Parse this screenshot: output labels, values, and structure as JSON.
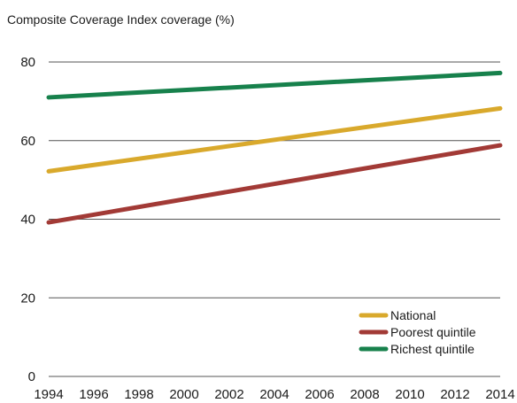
{
  "chart_data": {
    "type": "line",
    "ylabel": "Composite Coverage Index coverage (%)",
    "xlabel": "",
    "ylim": [
      0,
      80
    ],
    "yticks": [
      0,
      20,
      40,
      60,
      80
    ],
    "xlim": [
      1994,
      2014
    ],
    "xticks": [
      1994,
      1996,
      1998,
      2000,
      2002,
      2004,
      2006,
      2008,
      2010,
      2012,
      2014
    ],
    "grid": true,
    "legend_position": "bottom-right",
    "series": [
      {
        "name": "National",
        "color": "#d9a92c",
        "x": [
          1994,
          2014
        ],
        "values": [
          52.2,
          68.2
        ]
      },
      {
        "name": "Poorest quintile",
        "color": "#a23a36",
        "x": [
          1994,
          2014
        ],
        "values": [
          39.2,
          58.8
        ]
      },
      {
        "name": "Richest quintile",
        "color": "#17814c",
        "x": [
          1994,
          2014
        ],
        "values": [
          71.0,
          77.2
        ]
      }
    ]
  }
}
